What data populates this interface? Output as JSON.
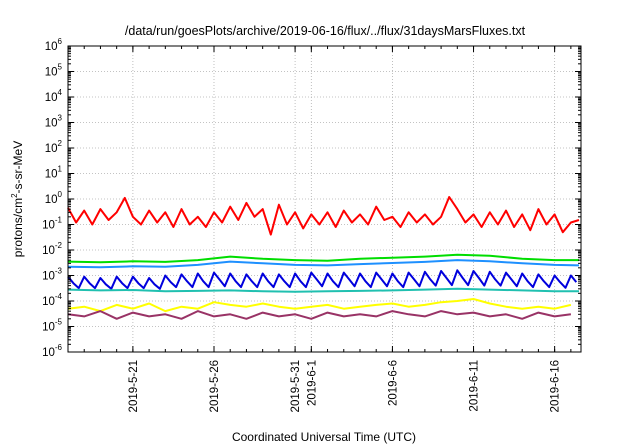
{
  "chart_data": {
    "type": "line",
    "title": "/data/run/goesPlots/archive/2019-06-16/flux/../flux/31daysMarsFluxes.txt",
    "xlabel": "Coordinated Universal Time (UTC)",
    "ylabel": {
      "before": "protons/cm",
      "sup": "2",
      "after": "-s-sr-MeV"
    },
    "yscale": "log",
    "ylim": [
      1e-06,
      1000000.0
    ],
    "xlim": [
      "2019-05-17",
      "2019-06-17 15:00"
    ],
    "grid": true,
    "y_ticks": [
      {
        "base": "10",
        "exp": "-6"
      },
      {
        "base": "10",
        "exp": "-5"
      },
      {
        "base": "10",
        "exp": "-4"
      },
      {
        "base": "10",
        "exp": "-3"
      },
      {
        "base": "10",
        "exp": "-2"
      },
      {
        "base": "10",
        "exp": "-1"
      },
      {
        "base": "10",
        "exp": "0"
      },
      {
        "base": "10",
        "exp": "1"
      },
      {
        "base": "10",
        "exp": "2"
      },
      {
        "base": "10",
        "exp": "3"
      },
      {
        "base": "10",
        "exp": "4"
      },
      {
        "base": "10",
        "exp": "5"
      },
      {
        "base": "10",
        "exp": "6"
      }
    ],
    "x_ticks": [
      {
        "label": "2019-5-21",
        "date": "2019-05-21"
      },
      {
        "label": "2019-5-26",
        "date": "2019-05-26"
      },
      {
        "label": "2019-5-31",
        "date": "2019-05-31"
      },
      {
        "label": "2019-6-1",
        "date": "2019-06-01"
      },
      {
        "label": "2019-6-6",
        "date": "2019-06-06"
      },
      {
        "label": "2019-6-11",
        "date": "2019-06-11"
      },
      {
        "label": "2019-6-16",
        "date": "2019-06-16"
      }
    ],
    "series": [
      {
        "color": "#ff0000",
        "x": [
          "2019-05-17",
          "2019-05-17 12:00",
          "2019-05-18",
          "2019-05-18 12:00",
          "2019-05-19",
          "2019-05-19 12:00",
          "2019-05-20",
          "2019-05-20 12:00",
          "2019-05-21",
          "2019-05-21 12:00",
          "2019-05-22",
          "2019-05-22 12:00",
          "2019-05-23",
          "2019-05-23 12:00",
          "2019-05-24",
          "2019-05-24 12:00",
          "2019-05-25",
          "2019-05-25 12:00",
          "2019-05-26",
          "2019-05-26 12:00",
          "2019-05-27",
          "2019-05-27 12:00",
          "2019-05-28",
          "2019-05-28 12:00",
          "2019-05-29",
          "2019-05-29 12:00",
          "2019-05-30",
          "2019-05-30 12:00",
          "2019-05-31",
          "2019-05-31 12:00",
          "2019-06-01",
          "2019-06-01 12:00",
          "2019-06-02",
          "2019-06-02 12:00",
          "2019-06-03",
          "2019-06-03 12:00",
          "2019-06-04",
          "2019-06-04 12:00",
          "2019-06-05",
          "2019-06-05 12:00",
          "2019-06-06",
          "2019-06-06 12:00",
          "2019-06-07",
          "2019-06-07 12:00",
          "2019-06-08",
          "2019-06-08 12:00",
          "2019-06-09",
          "2019-06-09 12:00",
          "2019-06-10",
          "2019-06-10 12:00",
          "2019-06-11",
          "2019-06-11 12:00",
          "2019-06-12",
          "2019-06-12 12:00",
          "2019-06-13",
          "2019-06-13 12:00",
          "2019-06-14",
          "2019-06-14 12:00",
          "2019-06-15",
          "2019-06-15 12:00",
          "2019-06-16",
          "2019-06-16 12:00",
          "2019-06-17",
          "2019-06-17 12:00"
        ],
        "values": [
          0.45,
          0.12,
          0.35,
          0.1,
          0.4,
          0.15,
          0.3,
          1.1,
          0.2,
          0.1,
          0.35,
          0.12,
          0.3,
          0.08,
          0.4,
          0.1,
          0.2,
          0.08,
          0.3,
          0.12,
          0.5,
          0.15,
          0.7,
          0.2,
          0.4,
          0.04,
          0.6,
          0.1,
          0.3,
          0.07,
          0.25,
          0.1,
          0.3,
          0.08,
          0.35,
          0.12,
          0.25,
          0.1,
          0.5,
          0.15,
          0.2,
          0.08,
          0.3,
          0.12,
          0.25,
          0.1,
          0.2,
          1.2,
          0.4,
          0.12,
          0.25,
          0.08,
          0.3,
          0.1,
          0.35,
          0.08,
          0.25,
          0.06,
          0.4,
          0.1,
          0.25,
          0.05,
          0.12,
          0.15
        ]
      },
      {
        "color": "#00dd00",
        "x": [
          "2019-05-17",
          "2019-05-19",
          "2019-05-21",
          "2019-05-23",
          "2019-05-25",
          "2019-05-27",
          "2019-05-29",
          "2019-05-31",
          "2019-06-02",
          "2019-06-04",
          "2019-06-06",
          "2019-06-08",
          "2019-06-10",
          "2019-06-12",
          "2019-06-14",
          "2019-06-16",
          "2019-06-17 12:00"
        ],
        "values": [
          0.0035,
          0.0033,
          0.0036,
          0.0034,
          0.004,
          0.0055,
          0.0045,
          0.004,
          0.0038,
          0.0045,
          0.005,
          0.0055,
          0.0065,
          0.006,
          0.0045,
          0.004,
          0.004
        ]
      },
      {
        "color": "#1e90ff",
        "x": [
          "2019-05-17",
          "2019-05-19",
          "2019-05-21",
          "2019-05-23",
          "2019-05-25",
          "2019-05-27",
          "2019-05-29",
          "2019-05-31",
          "2019-06-02",
          "2019-06-04",
          "2019-06-06",
          "2019-06-08",
          "2019-06-10",
          "2019-06-12",
          "2019-06-14",
          "2019-06-16",
          "2019-06-17 12:00"
        ],
        "values": [
          0.0022,
          0.0021,
          0.0023,
          0.0022,
          0.0026,
          0.0035,
          0.003,
          0.0026,
          0.0025,
          0.0028,
          0.0031,
          0.0034,
          0.004,
          0.0036,
          0.003,
          0.0026,
          0.0025
        ]
      },
      {
        "color": "#0000dd",
        "x": [
          "2019-05-17",
          "2019-05-17 08:00",
          "2019-05-17 16:00",
          "2019-05-18",
          "2019-05-18 08:00",
          "2019-05-18 16:00",
          "2019-05-19",
          "2019-05-19 08:00",
          "2019-05-19 16:00",
          "2019-05-20",
          "2019-05-20 08:00",
          "2019-05-20 16:00",
          "2019-05-21",
          "2019-05-21 08:00",
          "2019-05-21 16:00",
          "2019-05-22",
          "2019-05-22 08:00",
          "2019-05-22 16:00",
          "2019-05-23",
          "2019-05-23 08:00",
          "2019-05-23 16:00",
          "2019-05-24",
          "2019-05-24 08:00",
          "2019-05-24 16:00",
          "2019-05-25",
          "2019-05-25 08:00",
          "2019-05-25 16:00",
          "2019-05-26",
          "2019-05-26 08:00",
          "2019-05-26 16:00",
          "2019-05-27",
          "2019-05-27 08:00",
          "2019-05-27 16:00",
          "2019-05-28",
          "2019-05-28 08:00",
          "2019-05-28 16:00",
          "2019-05-29",
          "2019-05-29 08:00",
          "2019-05-29 16:00",
          "2019-05-30",
          "2019-05-30 08:00",
          "2019-05-30 16:00",
          "2019-05-31",
          "2019-05-31 08:00",
          "2019-05-31 16:00",
          "2019-06-01",
          "2019-06-01 08:00",
          "2019-06-01 16:00",
          "2019-06-02",
          "2019-06-02 08:00",
          "2019-06-02 16:00",
          "2019-06-03",
          "2019-06-03 08:00",
          "2019-06-03 16:00",
          "2019-06-04",
          "2019-06-04 08:00",
          "2019-06-04 16:00",
          "2019-06-05",
          "2019-06-05 08:00",
          "2019-06-05 16:00",
          "2019-06-06",
          "2019-06-06 08:00",
          "2019-06-06 16:00",
          "2019-06-07",
          "2019-06-07 08:00",
          "2019-06-07 16:00",
          "2019-06-08",
          "2019-06-08 08:00",
          "2019-06-08 16:00",
          "2019-06-09",
          "2019-06-09 08:00",
          "2019-06-09 16:00",
          "2019-06-10",
          "2019-06-10 08:00",
          "2019-06-10 16:00",
          "2019-06-11",
          "2019-06-11 08:00",
          "2019-06-11 16:00",
          "2019-06-12",
          "2019-06-12 08:00",
          "2019-06-12 16:00",
          "2019-06-13",
          "2019-06-13 08:00",
          "2019-06-13 16:00",
          "2019-06-14",
          "2019-06-14 08:00",
          "2019-06-14 16:00",
          "2019-06-15",
          "2019-06-15 08:00",
          "2019-06-15 16:00",
          "2019-06-16",
          "2019-06-16 08:00",
          "2019-06-16 16:00",
          "2019-06-17",
          "2019-06-17 08:00"
        ],
        "values": [
          0.0009,
          0.0005,
          0.00032,
          0.0009,
          0.0005,
          0.00032,
          0.0008,
          0.00045,
          0.0003,
          0.0009,
          0.0005,
          0.00032,
          0.0009,
          0.0005,
          0.00032,
          0.0008,
          0.00045,
          0.0003,
          0.001,
          0.00055,
          0.00035,
          0.0011,
          0.0006,
          0.00035,
          0.0012,
          0.0006,
          0.00035,
          0.0013,
          0.0007,
          0.00038,
          0.0012,
          0.0006,
          0.00035,
          0.0011,
          0.0006,
          0.00035,
          0.0012,
          0.0006,
          0.00035,
          0.0011,
          0.0006,
          0.00035,
          0.0012,
          0.0006,
          0.00035,
          0.0013,
          0.0007,
          0.00038,
          0.0012,
          0.0006,
          0.00035,
          0.0013,
          0.0007,
          0.00038,
          0.0012,
          0.0006,
          0.00035,
          0.0013,
          0.0007,
          0.00038,
          0.0012,
          0.0006,
          0.00035,
          0.0013,
          0.0007,
          0.00038,
          0.0014,
          0.0007,
          0.0004,
          0.0015,
          0.0008,
          0.00042,
          0.0016,
          0.0008,
          0.00042,
          0.0015,
          0.0008,
          0.0004,
          0.0014,
          0.0007,
          0.0004,
          0.0013,
          0.0007,
          0.00038,
          0.0012,
          0.0006,
          0.00035,
          0.0011,
          0.0006,
          0.00035,
          0.001,
          0.00055,
          0.00033,
          0.001,
          0.00055
        ]
      },
      {
        "color": "#20c0b0",
        "x": [
          "2019-05-17",
          "2019-05-19",
          "2019-05-21",
          "2019-05-23",
          "2019-05-25",
          "2019-05-27",
          "2019-05-29",
          "2019-05-31",
          "2019-06-02",
          "2019-06-04",
          "2019-06-06",
          "2019-06-08",
          "2019-06-10",
          "2019-06-12",
          "2019-06-14",
          "2019-06-16",
          "2019-06-17 12:00"
        ],
        "values": [
          0.00028,
          0.00026,
          0.00027,
          0.00024,
          0.00025,
          0.00026,
          0.00024,
          0.00023,
          0.00024,
          0.00025,
          0.00026,
          0.00028,
          0.0003,
          0.00028,
          0.00026,
          0.00024,
          0.00024
        ]
      },
      {
        "color": "#ffff00",
        "x": [
          "2019-05-17",
          "2019-05-18",
          "2019-05-19",
          "2019-05-20",
          "2019-05-21",
          "2019-05-22",
          "2019-05-23",
          "2019-05-24",
          "2019-05-25",
          "2019-05-26",
          "2019-05-27",
          "2019-05-28",
          "2019-05-29",
          "2019-05-30",
          "2019-05-31",
          "2019-06-01",
          "2019-06-02",
          "2019-06-03",
          "2019-06-04",
          "2019-06-05",
          "2019-06-06",
          "2019-06-07",
          "2019-06-08",
          "2019-06-09",
          "2019-06-10",
          "2019-06-11",
          "2019-06-12",
          "2019-06-13",
          "2019-06-14",
          "2019-06-15",
          "2019-06-16",
          "2019-06-17"
        ],
        "values": [
          5e-05,
          6e-05,
          4e-05,
          7e-05,
          5e-05,
          8e-05,
          4e-05,
          6e-05,
          5e-05,
          9e-05,
          7e-05,
          6e-05,
          8e-05,
          6e-05,
          5e-05,
          6e-05,
          7e-05,
          5e-05,
          6e-05,
          7e-05,
          8e-05,
          6e-05,
          7e-05,
          9e-05,
          0.0001,
          0.00012,
          8e-05,
          6e-05,
          5e-05,
          6e-05,
          5e-05,
          7e-05
        ]
      },
      {
        "color": "#993366",
        "x": [
          "2019-05-17",
          "2019-05-18",
          "2019-05-19",
          "2019-05-20",
          "2019-05-21",
          "2019-05-22",
          "2019-05-23",
          "2019-05-24",
          "2019-05-25",
          "2019-05-26",
          "2019-05-27",
          "2019-05-28",
          "2019-05-29",
          "2019-05-30",
          "2019-05-31",
          "2019-06-01",
          "2019-06-02",
          "2019-06-03",
          "2019-06-04",
          "2019-06-05",
          "2019-06-06",
          "2019-06-07",
          "2019-06-08",
          "2019-06-09",
          "2019-06-10",
          "2019-06-11",
          "2019-06-12",
          "2019-06-13",
          "2019-06-14",
          "2019-06-15",
          "2019-06-16",
          "2019-06-17"
        ],
        "values": [
          3e-05,
          2.5e-05,
          4e-05,
          2e-05,
          3.5e-05,
          2.5e-05,
          3e-05,
          2e-05,
          4e-05,
          2.5e-05,
          3e-05,
          2e-05,
          3.5e-05,
          2.5e-05,
          3e-05,
          2e-05,
          3.5e-05,
          2.5e-05,
          3e-05,
          2.5e-05,
          4e-05,
          3e-05,
          2.5e-05,
          4e-05,
          3e-05,
          3.5e-05,
          2.5e-05,
          3e-05,
          2e-05,
          3.5e-05,
          2.5e-05,
          3e-05
        ]
      }
    ]
  }
}
